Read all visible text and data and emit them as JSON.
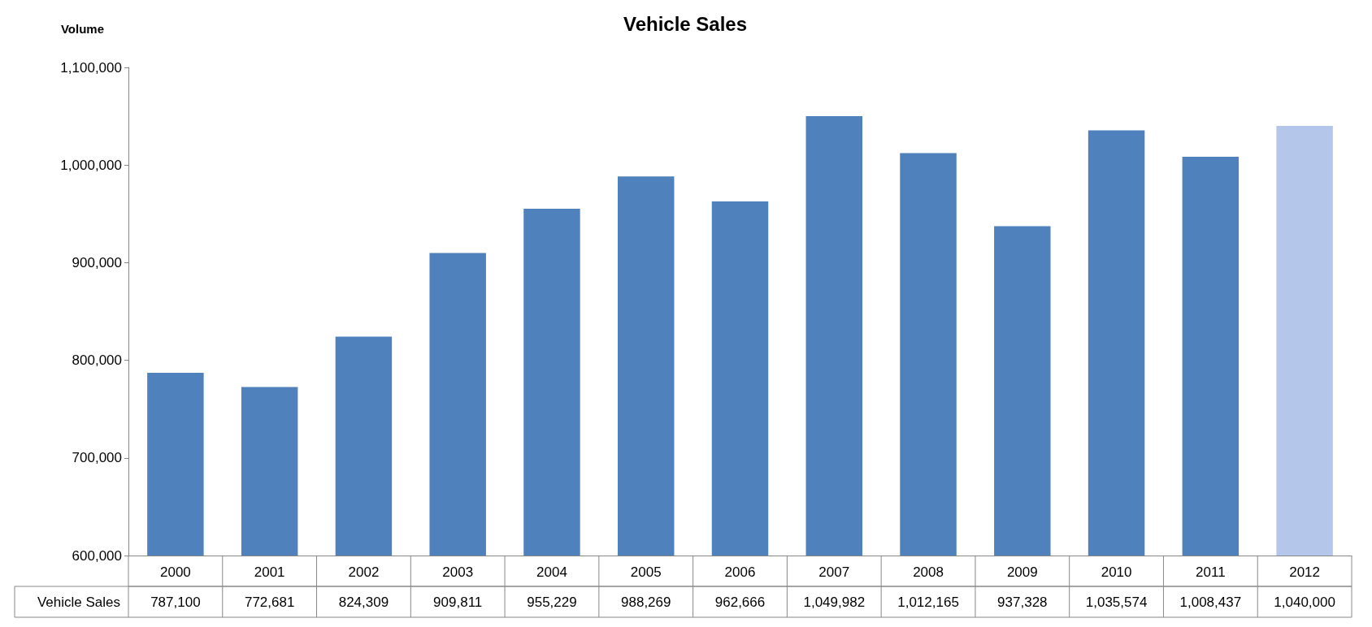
{
  "chart_data": {
    "type": "bar",
    "title": "Vehicle Sales",
    "ylabel": "Volume",
    "categories": [
      "2000",
      "2001",
      "2002",
      "2003",
      "2004",
      "2005",
      "2006",
      "2007",
      "2008",
      "2009",
      "2010",
      "2011",
      "2012"
    ],
    "series": [
      {
        "name": "Vehicle Sales",
        "colors": [
          "#4f81bd",
          "#4f81bd",
          "#4f81bd",
          "#4f81bd",
          "#4f81bd",
          "#4f81bd",
          "#4f81bd",
          "#4f81bd",
          "#4f81bd",
          "#4f81bd",
          "#4f81bd",
          "#4f81bd",
          "#b4c7ea"
        ],
        "values": [
          787100,
          772681,
          824309,
          909811,
          955229,
          988269,
          962666,
          1049982,
          1012165,
          937328,
          1035574,
          1008437,
          1040000
        ],
        "value_labels": [
          "787,100",
          "772,681",
          "824,309",
          "909,811",
          "955,229",
          "988,269",
          "962,666",
          "1,049,982",
          "1,012,165",
          "937,328",
          "1,035,574",
          "1,008,437",
          "1,040,000"
        ]
      }
    ],
    "ylim": [
      600000,
      1100000
    ],
    "yticks": [
      {
        "value": 600000,
        "label": "600,000"
      },
      {
        "value": 700000,
        "label": "700,000"
      },
      {
        "value": 800000,
        "label": "800,000"
      },
      {
        "value": 900000,
        "label": "900,000"
      },
      {
        "value": 1000000,
        "label": "1,000,000"
      },
      {
        "value": 1100000,
        "label": "1,100,000"
      }
    ],
    "grid": false,
    "legend": false
  }
}
